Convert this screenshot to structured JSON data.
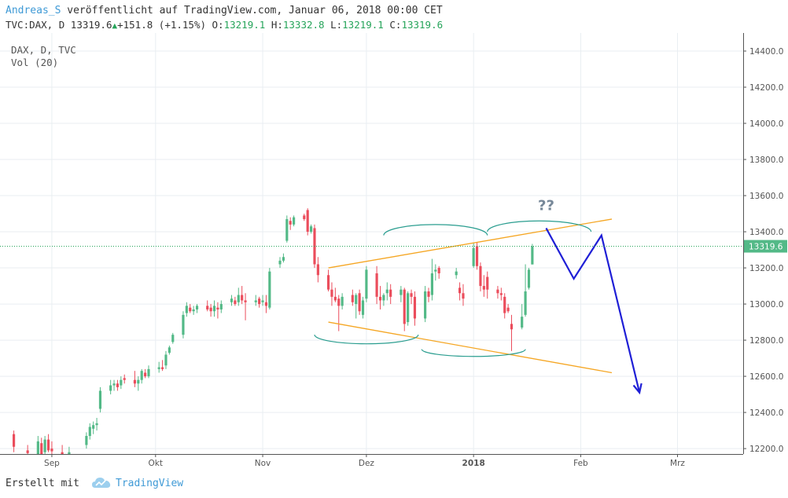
{
  "header": {
    "author": "Andreas_S",
    "published_text": " veröffentlicht auf TradingView.com, Januar 06, 2018 00:00 CET",
    "symbol": "TVC:DAX, D",
    "last": "13319.6",
    "change": "+151.8 (+1.15%)",
    "o_label": "O:",
    "o_value": "13219.1",
    "h_label": "H:",
    "h_value": "13332.8",
    "l_label": "L:",
    "l_value": "13219.1",
    "c_label": "C:",
    "c_value": "13319.6"
  },
  "legend": {
    "line1": "DAX, D, TVC",
    "line2": "Vol (20)"
  },
  "footer": {
    "created_with": "Erstellt mit",
    "brand": "TradingView"
  },
  "colors": {
    "up": "#53b987",
    "down": "#eb4d5c",
    "grid": "#e9eef2",
    "axis_text": "#555555",
    "price_line": "#26a45a",
    "trend_line": "#f5a623",
    "projection": "#1f1fd6",
    "arc": "#2a9d8f",
    "annotation": "#778899"
  },
  "chart_data": {
    "type": "candlestick",
    "symbol": "DAX, D, TVC",
    "x_axis_labels": [
      {
        "label": "Sep",
        "date": "2017-09-01"
      },
      {
        "label": "Okt",
        "date": "2017-10-01"
      },
      {
        "label": "Nov",
        "date": "2017-11-01"
      },
      {
        "label": "Dez",
        "date": "2017-12-01"
      },
      {
        "label": "2018",
        "date": "2018-01-01"
      },
      {
        "label": "Feb",
        "date": "2018-02-01"
      },
      {
        "label": "Mrz",
        "date": "2018-03-01"
      }
    ],
    "x_range": [
      "2017-08-17",
      "2018-03-20"
    ],
    "y_ticks": [
      12200,
      12400,
      12600,
      12800,
      13000,
      13200,
      13400,
      13600,
      13800,
      14000,
      14200,
      14400
    ],
    "ylim": [
      12170,
      14500
    ],
    "last_price": 13319.6,
    "last_price_label": "13319.6",
    "candles": [
      {
        "d": "2017-08-21",
        "o": 12280,
        "h": 12300,
        "l": 12180,
        "c": 12210
      },
      {
        "d": "2017-08-25",
        "o": 12190,
        "h": 12220,
        "l": 12150,
        "c": 12175
      },
      {
        "d": "2017-08-28",
        "o": 12170,
        "h": 12270,
        "l": 12150,
        "c": 12240
      },
      {
        "d": "2017-08-29",
        "o": 12230,
        "h": 12260,
        "l": 12160,
        "c": 12170
      },
      {
        "d": "2017-08-30",
        "o": 12180,
        "h": 12270,
        "l": 12160,
        "c": 12250
      },
      {
        "d": "2017-08-31",
        "o": 12250,
        "h": 12280,
        "l": 12180,
        "c": 12190
      },
      {
        "d": "2017-09-01",
        "o": 12200,
        "h": 12240,
        "l": 12170,
        "c": 12185
      },
      {
        "d": "2017-09-04",
        "o": 12180,
        "h": 12220,
        "l": 12140,
        "c": 12160
      },
      {
        "d": "2017-09-06",
        "o": 12160,
        "h": 12210,
        "l": 12140,
        "c": 12180
      },
      {
        "d": "2017-09-11",
        "o": 12220,
        "h": 12290,
        "l": 12200,
        "c": 12270
      },
      {
        "d": "2017-09-12",
        "o": 12270,
        "h": 12340,
        "l": 12250,
        "c": 12320
      },
      {
        "d": "2017-09-13",
        "o": 12310,
        "h": 12350,
        "l": 12280,
        "c": 12330
      },
      {
        "d": "2017-09-14",
        "o": 12330,
        "h": 12370,
        "l": 12300,
        "c": 12340
      },
      {
        "d": "2017-09-15",
        "o": 12420,
        "h": 12540,
        "l": 12400,
        "c": 12520
      },
      {
        "d": "2017-09-18",
        "o": 12520,
        "h": 12580,
        "l": 12500,
        "c": 12550
      },
      {
        "d": "2017-09-19",
        "o": 12550,
        "h": 12580,
        "l": 12520,
        "c": 12560
      },
      {
        "d": "2017-09-20",
        "o": 12560,
        "h": 12580,
        "l": 12520,
        "c": 12540
      },
      {
        "d": "2017-09-21",
        "o": 12550,
        "h": 12600,
        "l": 12530,
        "c": 12580
      },
      {
        "d": "2017-09-22",
        "o": 12590,
        "h": 12610,
        "l": 12560,
        "c": 12580
      },
      {
        "d": "2017-09-25",
        "o": 12580,
        "h": 12630,
        "l": 12540,
        "c": 12560
      },
      {
        "d": "2017-09-26",
        "o": 12560,
        "h": 12600,
        "l": 12520,
        "c": 12580
      },
      {
        "d": "2017-09-27",
        "o": 12580,
        "h": 12640,
        "l": 12560,
        "c": 12630
      },
      {
        "d": "2017-09-28",
        "o": 12620,
        "h": 12640,
        "l": 12590,
        "c": 12600
      },
      {
        "d": "2017-09-29",
        "o": 12600,
        "h": 12660,
        "l": 12590,
        "c": 12640
      },
      {
        "d": "2017-10-02",
        "o": 12640,
        "h": 12680,
        "l": 12620,
        "c": 12650
      },
      {
        "d": "2017-10-03",
        "o": 12650,
        "h": 12690,
        "l": 12630,
        "c": 12640
      },
      {
        "d": "2017-10-04",
        "o": 12660,
        "h": 12740,
        "l": 12640,
        "c": 12720
      },
      {
        "d": "2017-10-05",
        "o": 12730,
        "h": 12770,
        "l": 12720,
        "c": 12760
      },
      {
        "d": "2017-10-06",
        "o": 12790,
        "h": 12840,
        "l": 12780,
        "c": 12830
      },
      {
        "d": "2017-10-09",
        "o": 12830,
        "h": 12960,
        "l": 12810,
        "c": 12940
      },
      {
        "d": "2017-10-10",
        "o": 12950,
        "h": 13010,
        "l": 12930,
        "c": 12990
      },
      {
        "d": "2017-10-11",
        "o": 12980,
        "h": 13000,
        "l": 12950,
        "c": 12960
      },
      {
        "d": "2017-10-12",
        "o": 12960,
        "h": 12990,
        "l": 12940,
        "c": 12970
      },
      {
        "d": "2017-10-13",
        "o": 12970,
        "h": 13000,
        "l": 12950,
        "c": 12990
      },
      {
        "d": "2017-10-16",
        "o": 12990,
        "h": 13020,
        "l": 12960,
        "c": 12970
      },
      {
        "d": "2017-10-17",
        "o": 12980,
        "h": 13000,
        "l": 12930,
        "c": 12960
      },
      {
        "d": "2017-10-18",
        "o": 12960,
        "h": 13020,
        "l": 12930,
        "c": 12990
      },
      {
        "d": "2017-10-19",
        "o": 12980,
        "h": 13010,
        "l": 12920,
        "c": 12970
      },
      {
        "d": "2017-10-20",
        "o": 12970,
        "h": 13020,
        "l": 12950,
        "c": 13000
      },
      {
        "d": "2017-10-23",
        "o": 13010,
        "h": 13050,
        "l": 12990,
        "c": 13030
      },
      {
        "d": "2017-10-24",
        "o": 13020,
        "h": 13040,
        "l": 12990,
        "c": 13000
      },
      {
        "d": "2017-10-25",
        "o": 13010,
        "h": 13090,
        "l": 12990,
        "c": 13050
      },
      {
        "d": "2017-10-26",
        "o": 13050,
        "h": 13100,
        "l": 13000,
        "c": 13020
      },
      {
        "d": "2017-10-27",
        "o": 13020,
        "h": 13060,
        "l": 12910,
        "c": 13010
      },
      {
        "d": "2017-10-30",
        "o": 13010,
        "h": 13050,
        "l": 12990,
        "c": 13020
      },
      {
        "d": "2017-10-31",
        "o": 13030,
        "h": 13040,
        "l": 12980,
        "c": 13000
      },
      {
        "d": "2017-11-01",
        "o": 13010,
        "h": 13050,
        "l": 12990,
        "c": 13020
      },
      {
        "d": "2017-11-02",
        "o": 13010,
        "h": 13050,
        "l": 12950,
        "c": 12990
      },
      {
        "d": "2017-11-03",
        "o": 12980,
        "h": 13200,
        "l": 12970,
        "c": 13180
      },
      {
        "d": "2017-11-06",
        "o": 13220,
        "h": 13260,
        "l": 13200,
        "c": 13240
      },
      {
        "d": "2017-11-07",
        "o": 13240,
        "h": 13280,
        "l": 13230,
        "c": 13260
      },
      {
        "d": "2017-11-08",
        "o": 13350,
        "h": 13490,
        "l": 13340,
        "c": 13470
      },
      {
        "d": "2017-11-09",
        "o": 13460,
        "h": 13480,
        "l": 13410,
        "c": 13440
      },
      {
        "d": "2017-11-10",
        "o": 13440,
        "h": 13490,
        "l": 13430,
        "c": 13480
      },
      {
        "d": "2017-11-13",
        "o": 13490,
        "h": 13500,
        "l": 13460,
        "c": 13470
      },
      {
        "d": "2017-11-14",
        "o": 13520,
        "h": 13530,
        "l": 13380,
        "c": 13400
      },
      {
        "d": "2017-11-15",
        "o": 13400,
        "h": 13440,
        "l": 13390,
        "c": 13430
      },
      {
        "d": "2017-11-16",
        "o": 13420,
        "h": 13440,
        "l": 13200,
        "c": 13220
      },
      {
        "d": "2017-11-17",
        "o": 13220,
        "h": 13260,
        "l": 13120,
        "c": 13160
      },
      {
        "d": "2017-11-20",
        "o": 13160,
        "h": 13190,
        "l": 13070,
        "c": 13080
      },
      {
        "d": "2017-11-21",
        "o": 13080,
        "h": 13120,
        "l": 12990,
        "c": 13040
      },
      {
        "d": "2017-11-22",
        "o": 13040,
        "h": 13090,
        "l": 13010,
        "c": 13020
      },
      {
        "d": "2017-11-23",
        "o": 13030,
        "h": 13050,
        "l": 12850,
        "c": 12990
      },
      {
        "d": "2017-11-24",
        "o": 12990,
        "h": 13060,
        "l": 12970,
        "c": 13040
      },
      {
        "d": "2017-11-27",
        "o": 13050,
        "h": 13080,
        "l": 12990,
        "c": 13010
      },
      {
        "d": "2017-11-28",
        "o": 13000,
        "h": 13060,
        "l": 12920,
        "c": 13050
      },
      {
        "d": "2017-11-29",
        "o": 13060,
        "h": 13080,
        "l": 12940,
        "c": 12960
      },
      {
        "d": "2017-11-30",
        "o": 12940,
        "h": 13040,
        "l": 12920,
        "c": 13020
      },
      {
        "d": "2017-12-01",
        "o": 13030,
        "h": 13210,
        "l": 13010,
        "c": 13190
      },
      {
        "d": "2017-12-04",
        "o": 13170,
        "h": 13210,
        "l": 13000,
        "c": 13040
      },
      {
        "d": "2017-12-05",
        "o": 13040,
        "h": 13100,
        "l": 12970,
        "c": 13020
      },
      {
        "d": "2017-12-06",
        "o": 13020,
        "h": 13060,
        "l": 12990,
        "c": 13050
      },
      {
        "d": "2017-12-07",
        "o": 13060,
        "h": 13120,
        "l": 13020,
        "c": 13080
      },
      {
        "d": "2017-12-08",
        "o": 13080,
        "h": 13110,
        "l": 13000,
        "c": 13040
      },
      {
        "d": "2017-12-11",
        "o": 13050,
        "h": 13100,
        "l": 13010,
        "c": 13080
      },
      {
        "d": "2017-12-12",
        "o": 13080,
        "h": 13090,
        "l": 12850,
        "c": 12890
      },
      {
        "d": "2017-12-13",
        "o": 12900,
        "h": 13070,
        "l": 12880,
        "c": 13060
      },
      {
        "d": "2017-12-14",
        "o": 13060,
        "h": 13080,
        "l": 13000,
        "c": 13040
      },
      {
        "d": "2017-12-15",
        "o": 13040,
        "h": 13070,
        "l": 12880,
        "c": 12920
      },
      {
        "d": "2017-12-18",
        "o": 12920,
        "h": 13100,
        "l": 12900,
        "c": 13070
      },
      {
        "d": "2017-12-19",
        "o": 13070,
        "h": 13090,
        "l": 13010,
        "c": 13040
      },
      {
        "d": "2017-12-20",
        "o": 13050,
        "h": 13250,
        "l": 13020,
        "c": 13170
      },
      {
        "d": "2017-12-21",
        "o": 13180,
        "h": 13220,
        "l": 13130,
        "c": 13190
      },
      {
        "d": "2017-12-22",
        "o": 13200,
        "h": 13210,
        "l": 13140,
        "c": 13170
      },
      {
        "d": "2017-12-27",
        "o": 13160,
        "h": 13200,
        "l": 13140,
        "c": 13180
      },
      {
        "d": "2017-12-28",
        "o": 13090,
        "h": 13120,
        "l": 13020,
        "c": 13060
      },
      {
        "d": "2017-12-29",
        "o": 13060,
        "h": 13110,
        "l": 12990,
        "c": 13030
      },
      {
        "d": "2018-01-01",
        "o": 13210,
        "h": 13340,
        "l": 13200,
        "c": 13310
      },
      {
        "d": "2018-01-02",
        "o": 13320,
        "h": 13340,
        "l": 13190,
        "c": 13210
      },
      {
        "d": "2018-01-03",
        "o": 13210,
        "h": 13230,
        "l": 13070,
        "c": 13100
      },
      {
        "d": "2018-01-04",
        "o": 13100,
        "h": 13160,
        "l": 13040,
        "c": 13080
      },
      {
        "d": "2018-01-05",
        "o": 13150,
        "h": 13180,
        "l": 13030,
        "c": 13080
      },
      {
        "d": "2018-01-08",
        "o": 13080,
        "h": 13100,
        "l": 13030,
        "c": 13060
      },
      {
        "d": "2018-01-09",
        "o": 13060,
        "h": 13090,
        "l": 13020,
        "c": 13050
      },
      {
        "d": "2018-01-10",
        "o": 13040,
        "h": 13060,
        "l": 12920,
        "c": 12950
      },
      {
        "d": "2018-01-11",
        "o": 12980,
        "h": 13000,
        "l": 12950,
        "c": 12960
      },
      {
        "d": "2018-01-12",
        "o": 12890,
        "h": 12940,
        "l": 12740,
        "c": 12860
      },
      {
        "d": "2018-01-15",
        "o": 12870,
        "h": 13000,
        "l": 12860,
        "c": 12930
      },
      {
        "d": "2018-01-16",
        "o": 12940,
        "h": 13220,
        "l": 12930,
        "c": 13070
      },
      {
        "d": "2018-01-17",
        "o": 13090,
        "h": 13200,
        "l": 13080,
        "c": 13190
      },
      {
        "d": "2018-01-18",
        "o": 13219.1,
        "h": 13332.8,
        "l": 13219.1,
        "c": 13319.6
      }
    ],
    "drawings": [
      {
        "type": "trend_line",
        "name": "upper-channel",
        "x1": "2017-11-20",
        "y1": 13200,
        "x2": "2018-02-10",
        "y2": 13470
      },
      {
        "type": "trend_line",
        "name": "lower-channel",
        "x1": "2017-11-20",
        "y1": 12900,
        "x2": "2018-02-10",
        "y2": 12620
      },
      {
        "type": "arc",
        "name": "bottom-arc-1",
        "cx": "2017-12-01",
        "cy": 12830,
        "rx": 15,
        "ry": 50,
        "direction": "down"
      },
      {
        "type": "arc",
        "name": "top-arc-1",
        "cx": "2017-12-21",
        "cy": 13380,
        "rx": 15,
        "ry": 60,
        "direction": "up"
      },
      {
        "type": "arc",
        "name": "bottom-arc-2",
        "cx": "2018-01-01",
        "cy": 12750,
        "rx": 15,
        "ry": 40,
        "direction": "down"
      },
      {
        "type": "arc",
        "name": "top-arc-2",
        "cx": "2018-01-20",
        "cy": 13400,
        "rx": 15,
        "ry": 60,
        "direction": "up"
      },
      {
        "type": "polyline",
        "name": "projection-path",
        "points": [
          [
            "2018-01-22",
            13420
          ],
          [
            "2018-01-30",
            13140
          ],
          [
            "2018-02-07",
            13380
          ],
          [
            "2018-02-18",
            12510
          ]
        ]
      },
      {
        "type": "text",
        "name": "question-mark",
        "text": "??",
        "x": "2018-01-22",
        "y": 13520
      }
    ]
  }
}
